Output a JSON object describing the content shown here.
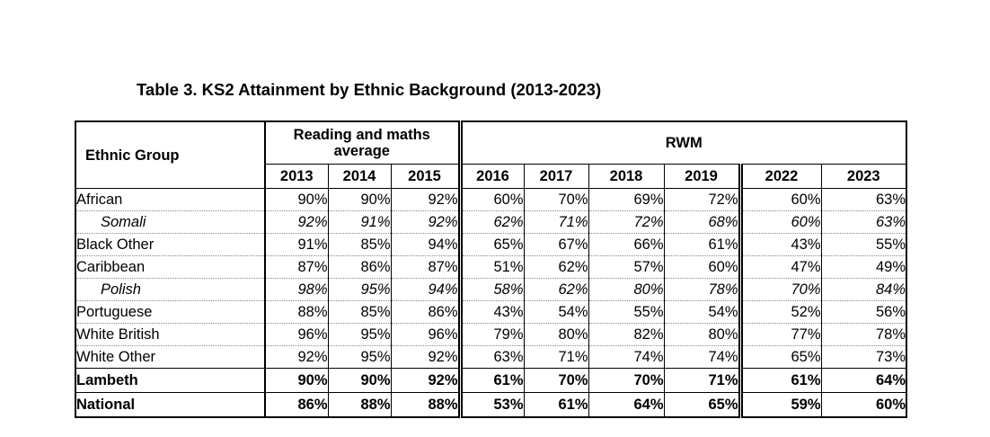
{
  "title": "Table 3.  KS2 Attainment by Ethnic Background (2013-2023)",
  "headers": {
    "ethnic_group": "Ethnic Group",
    "reading_maths": "Reading and maths average",
    "rwm": "RWM",
    "years": [
      "2013",
      "2014",
      "2015",
      "2016",
      "2017",
      "2018",
      "2019",
      "2022",
      "2023"
    ]
  },
  "rows": [
    {
      "group": "African",
      "values": [
        "90%",
        "90%",
        "92%",
        "60%",
        "70%",
        "69%",
        "72%",
        "60%",
        "63%"
      ]
    },
    {
      "group": "Somali",
      "values": [
        "92%",
        "91%",
        "92%",
        "62%",
        "71%",
        "72%",
        "68%",
        "60%",
        "63%"
      ]
    },
    {
      "group": "Black Other",
      "values": [
        "91%",
        "85%",
        "94%",
        "65%",
        "67%",
        "66%",
        "61%",
        "43%",
        "55%"
      ]
    },
    {
      "group": "Caribbean",
      "values": [
        "87%",
        "86%",
        "87%",
        "51%",
        "62%",
        "57%",
        "60%",
        "47%",
        "49%"
      ]
    },
    {
      "group": "Polish",
      "values": [
        "98%",
        "95%",
        "94%",
        "58%",
        "62%",
        "80%",
        "78%",
        "70%",
        "84%"
      ]
    },
    {
      "group": "Portuguese",
      "values": [
        "88%",
        "85%",
        "86%",
        "43%",
        "54%",
        "55%",
        "54%",
        "52%",
        "56%"
      ]
    },
    {
      "group": "White British",
      "values": [
        "96%",
        "95%",
        "96%",
        "79%",
        "80%",
        "82%",
        "80%",
        "77%",
        "78%"
      ]
    },
    {
      "group": "White Other",
      "values": [
        "92%",
        "95%",
        "92%",
        "63%",
        "71%",
        "74%",
        "74%",
        "65%",
        "73%"
      ]
    },
    {
      "group": "Lambeth",
      "values": [
        "90%",
        "90%",
        "92%",
        "61%",
        "70%",
        "70%",
        "71%",
        "61%",
        "64%"
      ]
    },
    {
      "group": "National",
      "values": [
        "86%",
        "88%",
        "88%",
        "53%",
        "61%",
        "64%",
        "65%",
        "59%",
        "60%"
      ]
    }
  ]
}
